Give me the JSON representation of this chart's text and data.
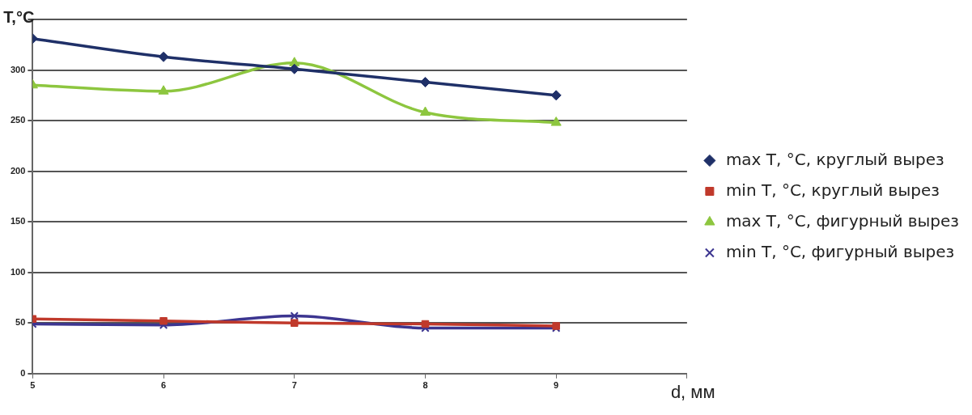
{
  "chart_data": {
    "type": "line",
    "xlabel": "d, мм",
    "ylabel": "T,°C",
    "x": [
      5,
      6,
      7,
      8,
      9
    ],
    "xlim": [
      5,
      10
    ],
    "xticks": [
      5,
      6,
      7,
      8,
      9,
      {
        "value": 10,
        "label": null
      }
    ],
    "ylim": [
      0,
      350
    ],
    "yticks": [
      0,
      50,
      100,
      150,
      200,
      250,
      300,
      {
        "value": 350,
        "label": null
      }
    ],
    "grid": "y",
    "legend": "right",
    "series": [
      {
        "name": "max T, °C, круглый вырез",
        "color": "#1f3068",
        "marker": "diamond",
        "values": [
          331,
          313,
          301,
          288,
          275
        ]
      },
      {
        "name": "min T, °C, круглый вырез",
        "color": "#c0392b",
        "marker": "square",
        "values": [
          54,
          52,
          50,
          49,
          47
        ]
      },
      {
        "name": "max T, °C, фигурный вырез",
        "color": "#8dc63f",
        "marker": "triangle",
        "values": [
          285,
          279,
          307,
          258,
          248
        ]
      },
      {
        "name": "min T, °C, фигурный вырез",
        "color": "#3c3590",
        "marker": "cross",
        "values": [
          49,
          48,
          57,
          45,
          45
        ]
      }
    ]
  }
}
